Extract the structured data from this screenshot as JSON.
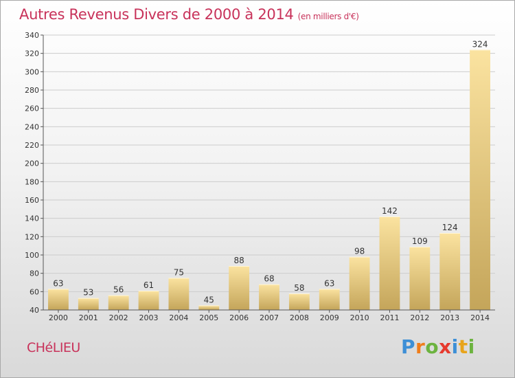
{
  "title": "Autres Revenus Divers de 2000 à 2014",
  "subtitle": "(en milliers d'€)",
  "commune": "CHéLIEU",
  "logo": {
    "text": "Proxiti",
    "letters": [
      "P",
      "r",
      "o",
      "x",
      "i",
      "t",
      "i"
    ],
    "colors": [
      "#3d8fd6",
      "#f07d1a",
      "#6cb33f",
      "#e63a2e",
      "#3d8fd6",
      "#e8a41c",
      "#6cb33f"
    ]
  },
  "chart_data": {
    "type": "bar",
    "categories": [
      "2000",
      "2001",
      "2002",
      "2003",
      "2004",
      "2005",
      "2006",
      "2007",
      "2008",
      "2009",
      "2010",
      "2011",
      "2012",
      "2013",
      "2014"
    ],
    "values": [
      63,
      53,
      56,
      61,
      75,
      45,
      88,
      68,
      58,
      63,
      98,
      142,
      109,
      124,
      324
    ],
    "data_labels": [
      "63",
      "53",
      "56",
      "61",
      "75",
      "45",
      "88",
      "68",
      "58",
      "63",
      "98",
      "142",
      "109",
      "124",
      "324"
    ],
    "title": "Autres Revenus Divers de 2000 à 2014",
    "subtitle": "(en milliers d'€)",
    "xlabel": "",
    "ylabel": "",
    "ylim": [
      40,
      340
    ],
    "yticks": [
      40,
      60,
      80,
      100,
      120,
      140,
      160,
      180,
      200,
      220,
      240,
      260,
      280,
      300,
      320,
      340
    ],
    "ytick_labels": [
      "40",
      "60",
      "80",
      "100",
      "120",
      "140",
      "160",
      "180",
      "200",
      "220",
      "240",
      "260",
      "280",
      "300",
      "320",
      "340"
    ],
    "grid": "horizontal",
    "legend": "none",
    "colors": {
      "bar_light": "#fbe3a0",
      "bar_dark": "#c4a55a",
      "grid": "#cccccc",
      "axis": "#555555"
    }
  }
}
